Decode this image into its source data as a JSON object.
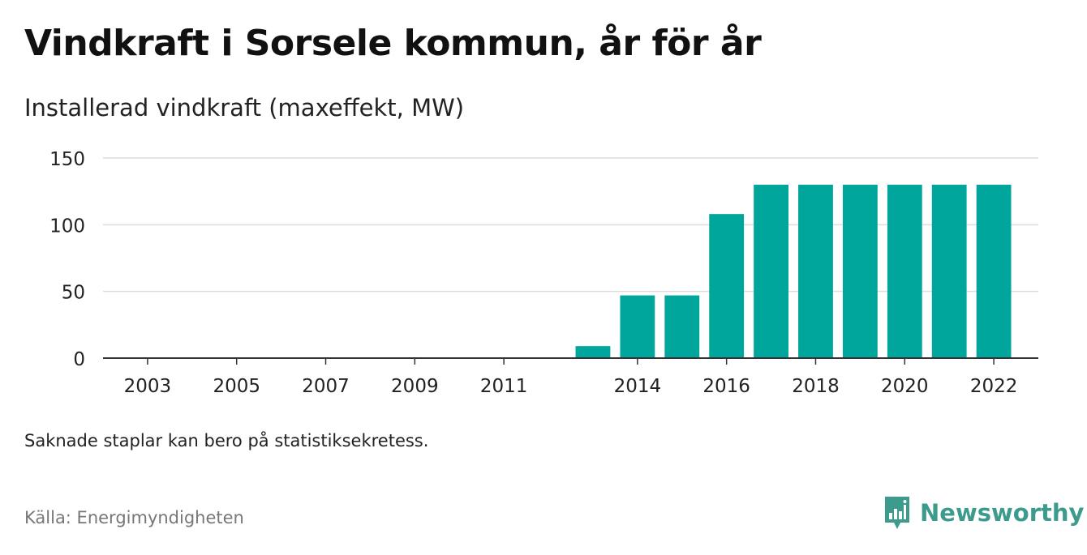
{
  "title": "Vindkraft i Sorsele kommun, år för år",
  "subtitle": "Installerad vindkraft (maxeffekt, MW)",
  "note": "Saknade staplar kan bero på statistiksekretess.",
  "source": "Källa: Energimyndigheten",
  "brand": "Newsworthy",
  "colors": {
    "bar": "#00a69c",
    "grid": "#dddddd",
    "axis": "#333333",
    "brand": "#3d9b8e"
  },
  "chart_data": {
    "type": "bar",
    "xlabel": "",
    "ylabel": "Installerad vindkraft (maxeffekt, MW)",
    "ylim": [
      0,
      150
    ],
    "yticks": [
      0,
      50,
      100,
      150
    ],
    "xlim": [
      2002,
      2023
    ],
    "xticks": [
      "2003",
      "2005",
      "2007",
      "2009",
      "2011",
      "2014",
      "2016",
      "2018",
      "2020",
      "2022"
    ],
    "categories": [
      "2013",
      "2014",
      "2015",
      "2016",
      "2017",
      "2018",
      "2019",
      "2020",
      "2021",
      "2022"
    ],
    "values": [
      9,
      47,
      47,
      108,
      130,
      130,
      130,
      130,
      130,
      130
    ],
    "grid": true,
    "legend": "none"
  }
}
